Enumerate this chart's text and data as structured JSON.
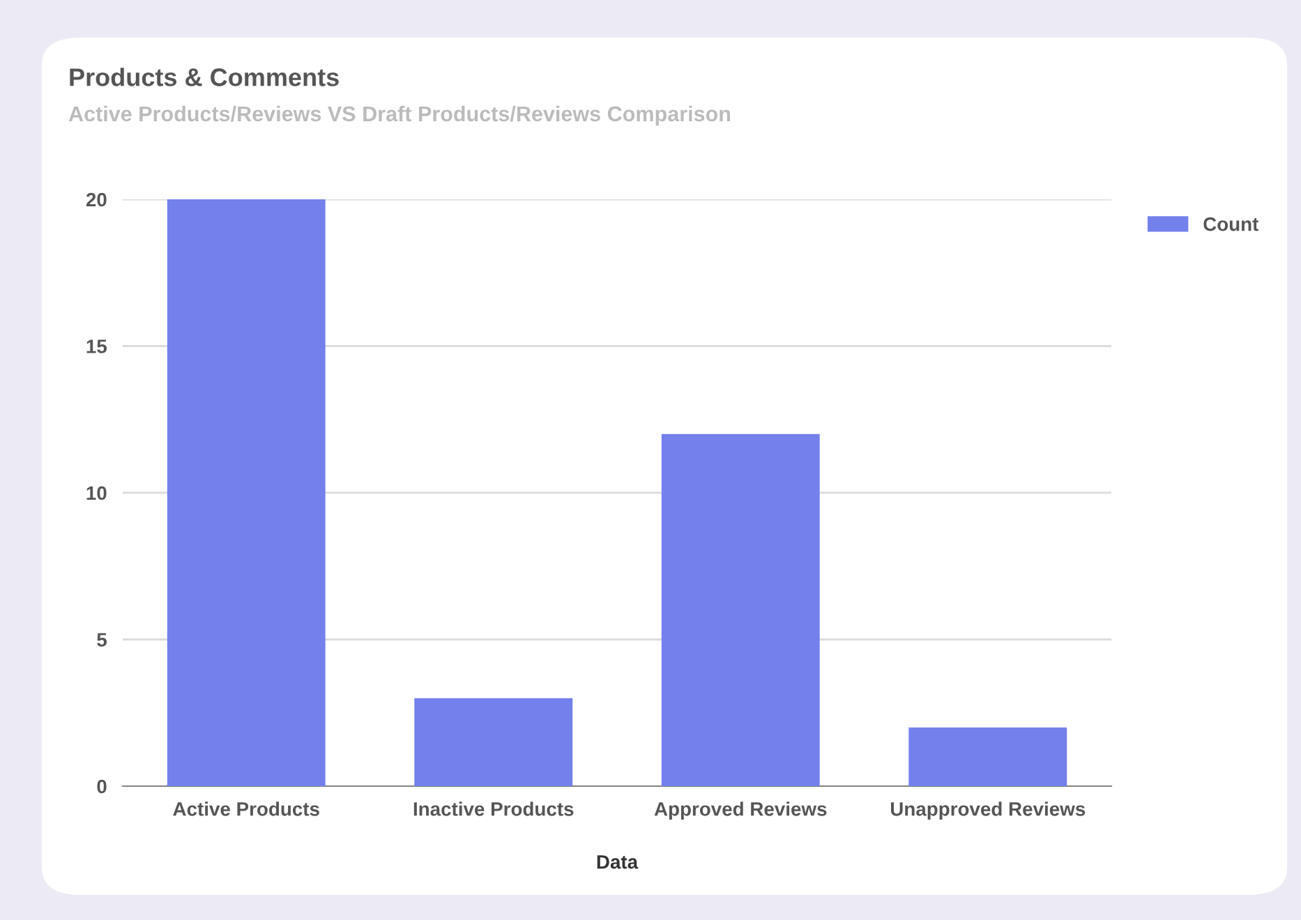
{
  "chart_data": {
    "type": "bar",
    "title": "Products & Comments",
    "subtitle": "Active Products/Reviews VS Draft Products/Reviews Comparison",
    "xlabel": "Data",
    "categories": [
      "Active Products",
      "Inactive Products",
      "Approved Reviews",
      "Unapproved Reviews"
    ],
    "series": [
      {
        "name": "Count",
        "color": "#7480ec",
        "values": [
          20,
          3,
          12,
          2
        ]
      }
    ],
    "ylim": [
      0,
      20
    ],
    "yticks": [
      0,
      5,
      10,
      15,
      20
    ],
    "grid": "y",
    "legend": "top right"
  }
}
